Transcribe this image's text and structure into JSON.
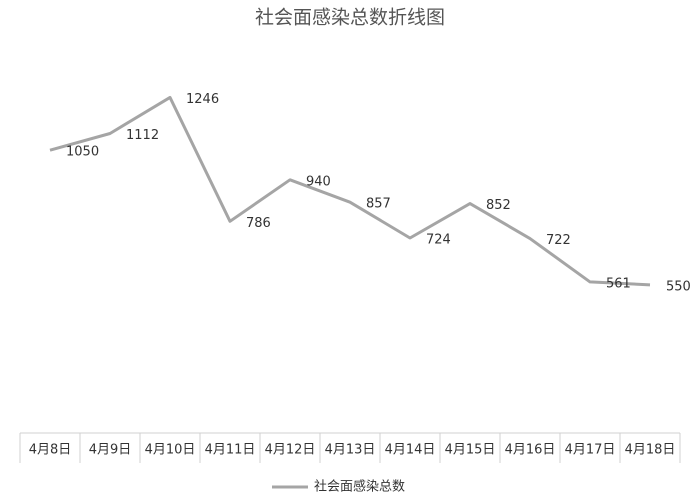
{
  "chart_data": {
    "type": "line",
    "title": "社会面感染总数折线图",
    "categories": [
      "4月8日",
      "4月9日",
      "4月10日",
      "4月11日",
      "4月12日",
      "4月13日",
      "4月14日",
      "4月15日",
      "4月16日",
      "4月17日",
      "4月18日"
    ],
    "series": [
      {
        "name": "社会面感染总数",
        "color": "#a5a5a5",
        "values": [
          1050,
          1112,
          1246,
          786,
          940,
          857,
          724,
          852,
          722,
          561,
          550
        ]
      }
    ],
    "ylim": [
      0,
      1500
    ],
    "legend": "bottom"
  }
}
